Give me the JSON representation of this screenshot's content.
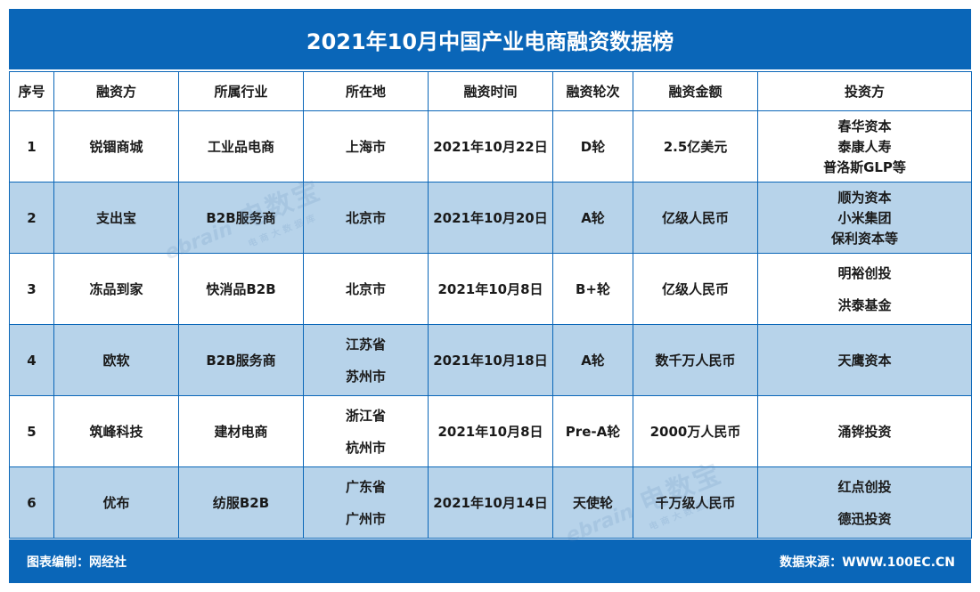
{
  "title": "2021年10月中国产业电商融资数据榜",
  "headers": [
    "序号",
    "融资方",
    "所属行业",
    "所在地",
    "融资时间",
    "融资轮次",
    "融资金额",
    "投资方"
  ],
  "rows": [
    {
      "no": "1",
      "company": "锐锢商城",
      "industry": "工业品电商",
      "location": [
        "上海市"
      ],
      "date": "2021年10月22日",
      "round": "D轮",
      "amount": "2.5亿美元",
      "investors": [
        "春华资本",
        "泰康人寿",
        "普洛斯GLP等"
      ]
    },
    {
      "no": "2",
      "company": "支出宝",
      "industry": "B2B服务商",
      "location": [
        "北京市"
      ],
      "date": "2021年10月20日",
      "round": "A轮",
      "amount": "亿级人民币",
      "investors": [
        "顺为资本",
        "小米集团",
        "保利资本等"
      ]
    },
    {
      "no": "3",
      "company": "冻品到家",
      "industry": "快消品B2B",
      "location": [
        "北京市"
      ],
      "date": "2021年10月8日",
      "round": "B+轮",
      "amount": "亿级人民币",
      "investors": [
        "明裕创投",
        "洪泰基金"
      ]
    },
    {
      "no": "4",
      "company": "欧软",
      "industry": "B2B服务商",
      "location": [
        "江苏省",
        "苏州市"
      ],
      "date": "2021年10月18日",
      "round": "A轮",
      "amount": "数千万人民币",
      "investors": [
        "天鹰资本"
      ]
    },
    {
      "no": "5",
      "company": "筑峰科技",
      "industry": "建材电商",
      "location": [
        "浙江省",
        "杭州市"
      ],
      "date": "2021年10月8日",
      "round": "Pre-A轮",
      "amount": "2000万人民币",
      "investors": [
        "涌铧投资"
      ]
    },
    {
      "no": "6",
      "company": "优布",
      "industry": "纺服B2B",
      "location": [
        "广东省",
        "广州市"
      ],
      "date": "2021年10月14日",
      "round": "天使轮",
      "amount": "千万级人民币",
      "investors": [
        "红点创投",
        "德迅投资"
      ]
    }
  ],
  "footer": {
    "left": "图表编制：网经社",
    "right": "数据来源：WWW.100EC.CN"
  },
  "watermark": {
    "logo_text": "ebrain",
    "main": "电数宝",
    "sub": "电商大数据库"
  },
  "colors": {
    "header_bg": "#0a66b8",
    "alt_row_bg": "#b7d3ea",
    "border": "#0a66b8"
  }
}
